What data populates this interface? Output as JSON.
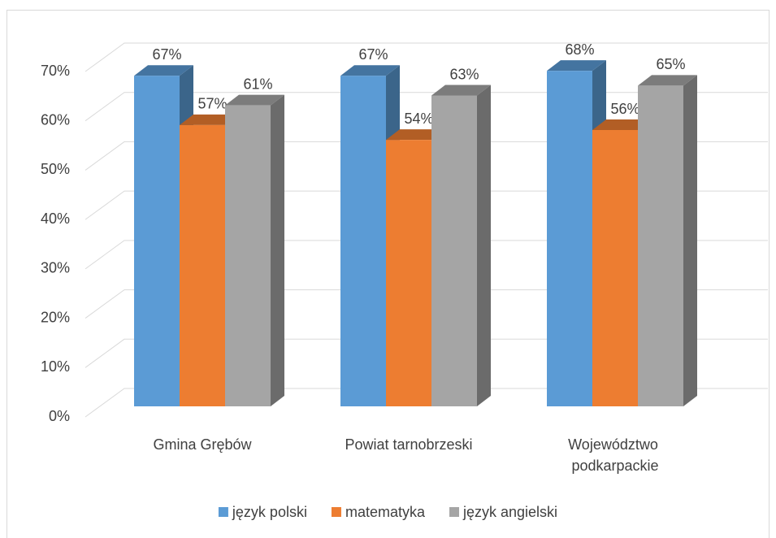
{
  "chart_data": {
    "type": "bar3d",
    "categories": [
      "Gmina Grębów",
      "Powiat tarnobrzeski",
      "Województwo podkarpackie"
    ],
    "series": [
      {
        "name": "język polski",
        "color": "#5b9bd5",
        "values": [
          67,
          67,
          68
        ],
        "value_labels": [
          "67%",
          "67%",
          "68%"
        ]
      },
      {
        "name": "matematyka",
        "color": "#ed7d31",
        "values": [
          57,
          54,
          56
        ],
        "value_labels": [
          "57%",
          "54%",
          "56%"
        ]
      },
      {
        "name": "język angielski",
        "color": "#a5a5a5",
        "values": [
          61,
          63,
          65
        ],
        "value_labels": [
          "61%",
          "63%",
          "65%"
        ]
      }
    ],
    "ylim": [
      0,
      70
    ],
    "yticks": [
      {
        "value": 0,
        "label": "0%"
      },
      {
        "value": 10,
        "label": "10%"
      },
      {
        "value": 20,
        "label": "20%"
      },
      {
        "value": 30,
        "label": "30%"
      },
      {
        "value": 40,
        "label": "40%"
      },
      {
        "value": 50,
        "label": "50%"
      },
      {
        "value": 60,
        "label": "60%"
      },
      {
        "value": 70,
        "label": "70%"
      }
    ],
    "grid": true,
    "legend": "bottom"
  }
}
